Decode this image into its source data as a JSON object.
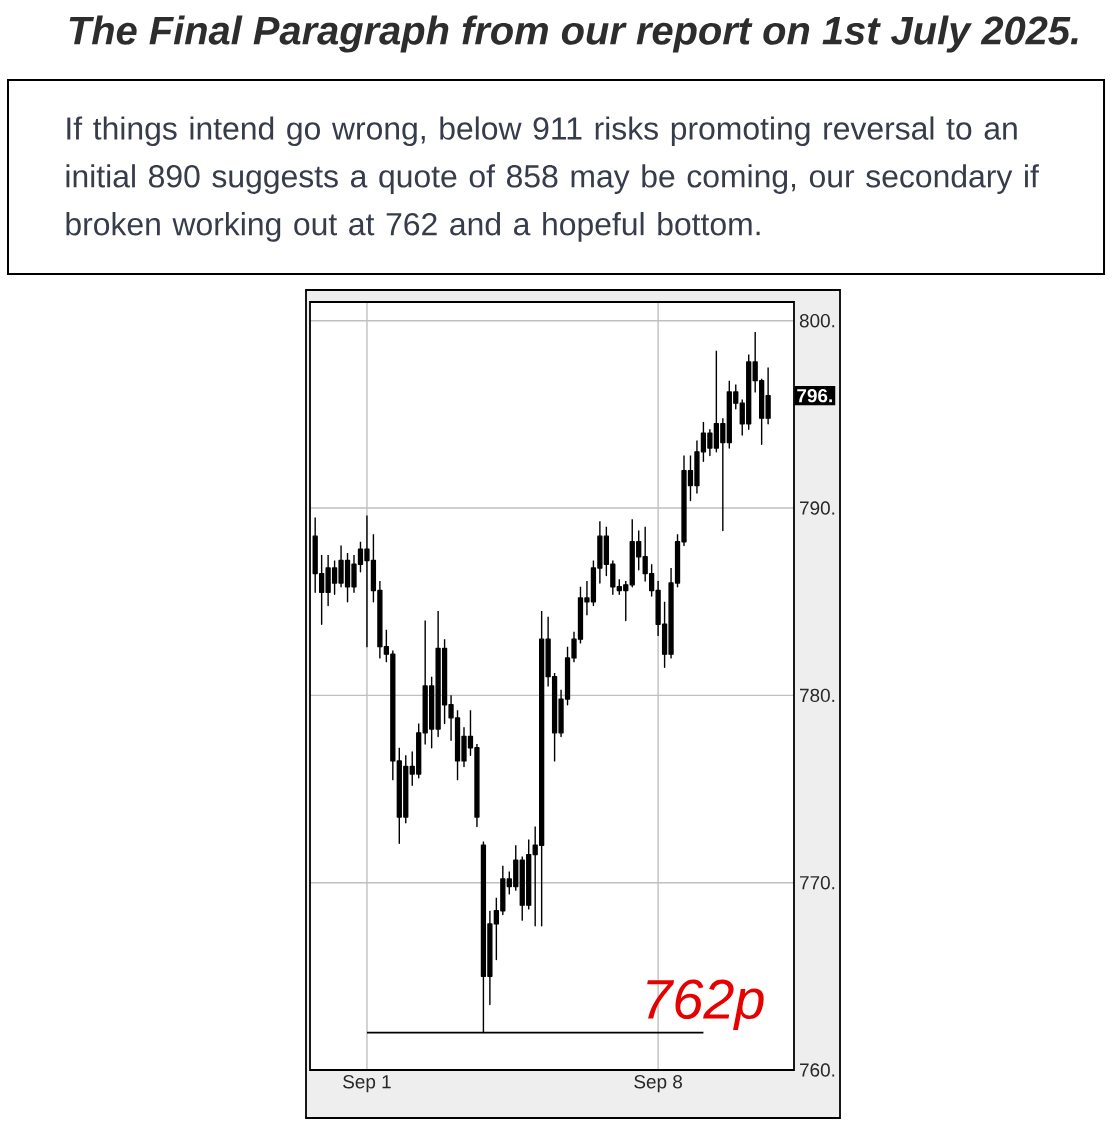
{
  "chart_data": {
    "type": "candlestick",
    "title": "The Final Paragraph from our report on 1st July 2025.",
    "annotations": [
      "If things intend go wrong, below 911 risks promoting reversal to an initial 890 suggests a quote of 858 may be coming, our secondary if broken working out at 762 and a hopeful bottom.",
      "796."
    ],
    "categories": [
      null,
      null,
      null,
      null,
      null,
      null,
      null,
      null,
      "Sep 1",
      null,
      null,
      null,
      null,
      null,
      null,
      null,
      null,
      null,
      null,
      null,
      null,
      null,
      null,
      null,
      null,
      null,
      null,
      null,
      null,
      null,
      null,
      null,
      null,
      null,
      null,
      null,
      null,
      null,
      null,
      null,
      null,
      null,
      null,
      null,
      null,
      null,
      null,
      null,
      null,
      null,
      null,
      null,
      null,
      "Sep 8",
      null,
      null,
      null,
      null,
      null,
      null,
      null,
      null,
      null,
      null,
      null,
      null,
      null,
      null,
      null,
      null,
      null
    ],
    "color": "#000000",
    "ohlc": [
      [
        788.5,
        789.5,
        785.5,
        786.5
      ],
      [
        786.5,
        787.5,
        783.8,
        785.5
      ],
      [
        785.5,
        787.5,
        784.8,
        786.8
      ],
      [
        786.8,
        787.2,
        785.4,
        786.0
      ],
      [
        786.0,
        788.0,
        785.8,
        787.2
      ],
      [
        787.2,
        787.6,
        785.0,
        785.8
      ],
      [
        785.8,
        787.5,
        785.5,
        787.0
      ],
      [
        787.0,
        788.2,
        786.6,
        787.8
      ],
      [
        787.8,
        789.6,
        782.6,
        787.2
      ],
      [
        787.2,
        788.6,
        785.0,
        785.6
      ],
      [
        785.6,
        786.1,
        782.0,
        782.6
      ],
      [
        782.6,
        783.5,
        781.8,
        782.2
      ],
      [
        782.2,
        782.4,
        775.5,
        776.5
      ],
      [
        776.5,
        777.2,
        772.1,
        773.5
      ],
      [
        773.5,
        776.8,
        773.2,
        776.2
      ],
      [
        776.2,
        777.0,
        775.2,
        775.8
      ],
      [
        775.8,
        778.5,
        775.6,
        778.0
      ],
      [
        778.0,
        784.0,
        777.4,
        780.5
      ],
      [
        780.5,
        781.0,
        777.2,
        778.2
      ],
      [
        778.2,
        784.5,
        777.8,
        782.5
      ],
      [
        782.5,
        783.0,
        778.5,
        779.5
      ],
      [
        779.5,
        780.0,
        777.6,
        778.8
      ],
      [
        778.8,
        779.2,
        775.5,
        776.5
      ],
      [
        776.5,
        778.3,
        776.2,
        777.8
      ],
      [
        777.8,
        779.2,
        776.8,
        777.2
      ],
      [
        777.2,
        777.4,
        773.0,
        773.5
      ],
      [
        772.0,
        772.2,
        762.0,
        765.0
      ],
      [
        765.0,
        768.5,
        763.5,
        767.8
      ],
      [
        767.8,
        769.2,
        765.9,
        768.5
      ],
      [
        768.5,
        770.9,
        768.3,
        770.2
      ],
      [
        770.2,
        770.6,
        769.4,
        769.8
      ],
      [
        769.8,
        772.0,
        769.6,
        771.2
      ],
      [
        771.2,
        771.4,
        768.0,
        768.8
      ],
      [
        768.8,
        772.3,
        768.6,
        771.5
      ],
      [
        771.5,
        773.0,
        767.7,
        772.0
      ],
      [
        772.0,
        784.5,
        767.7,
        783.0
      ],
      [
        783.0,
        784.2,
        780.5,
        781.0
      ],
      [
        781.0,
        781.2,
        776.5,
        778.0
      ],
      [
        778.0,
        780.3,
        777.8,
        779.8
      ],
      [
        779.8,
        782.6,
        779.5,
        782.0
      ],
      [
        782.0,
        783.4,
        781.8,
        783.0
      ],
      [
        783.0,
        785.8,
        782.8,
        785.2
      ],
      [
        785.2,
        786.1,
        784.3,
        785.0
      ],
      [
        785.0,
        787.2,
        784.8,
        786.8
      ],
      [
        786.8,
        789.3,
        786.0,
        788.5
      ],
      [
        788.5,
        789.0,
        786.4,
        787.0
      ],
      [
        787.0,
        787.2,
        785.4,
        785.8
      ],
      [
        785.8,
        786.2,
        785.4,
        785.6
      ],
      [
        785.6,
        786.1,
        784.0,
        785.9
      ],
      [
        785.9,
        789.4,
        785.8,
        788.2
      ],
      [
        788.2,
        788.8,
        786.7,
        787.4
      ],
      [
        787.4,
        789.0,
        786.1,
        786.5
      ],
      [
        786.5,
        787.0,
        785.3,
        785.6
      ],
      [
        785.6,
        786.1,
        783.2,
        783.8
      ],
      [
        783.8,
        785.0,
        781.5,
        782.2
      ],
      [
        782.2,
        786.8,
        782.0,
        786.0
      ],
      [
        786.0,
        788.6,
        785.8,
        788.2
      ],
      [
        788.2,
        792.8,
        788.0,
        792.0
      ],
      [
        792.0,
        792.8,
        790.4,
        791.2
      ],
      [
        791.2,
        793.6,
        790.8,
        793.0
      ],
      [
        793.0,
        794.6,
        792.5,
        794.0
      ],
      [
        794.0,
        794.2,
        792.8,
        793.2
      ],
      [
        793.2,
        798.4,
        793.0,
        794.5
      ],
      [
        794.5,
        794.8,
        788.8,
        793.5
      ],
      [
        793.5,
        796.8,
        793.2,
        796.2
      ],
      [
        796.2,
        796.6,
        795.3,
        795.6
      ],
      [
        795.6,
        795.8,
        793.9,
        794.5
      ],
      [
        794.5,
        798.2,
        794.2,
        797.8
      ],
      [
        797.8,
        799.4,
        796.2,
        796.8
      ],
      [
        796.8,
        796.9,
        793.4,
        794.8
      ],
      [
        794.8,
        797.5,
        794.5,
        796.0
      ]
    ],
    "series": [
      {
        "type": "line",
        "name": "762p",
        "color": "#000000",
        "values": [
          null,
          null,
          null,
          null,
          null,
          null,
          null,
          null,
          762,
          762,
          762,
          762,
          762,
          762,
          762,
          762,
          762,
          762,
          762,
          762,
          762,
          762,
          762,
          762,
          762,
          762,
          762,
          762,
          762,
          762,
          762,
          762,
          762,
          762,
          762,
          762,
          762,
          762,
          762,
          762,
          762,
          762,
          762,
          762,
          762,
          762,
          762,
          762,
          762,
          762,
          762,
          762,
          762,
          762,
          762,
          762,
          762,
          762,
          762,
          762,
          762,
          null,
          null,
          null,
          null,
          null,
          null,
          null,
          null,
          null,
          null
        ]
      }
    ],
    "ylim": [
      760,
      801
    ],
    "yticks": [
      {
        "value": 760,
        "label": "760."
      },
      {
        "value": 770,
        "label": "770."
      },
      {
        "value": 780,
        "label": "780."
      },
      {
        "value": 790,
        "label": "790."
      },
      {
        "value": 800,
        "label": "800."
      }
    ],
    "grid": true
  }
}
